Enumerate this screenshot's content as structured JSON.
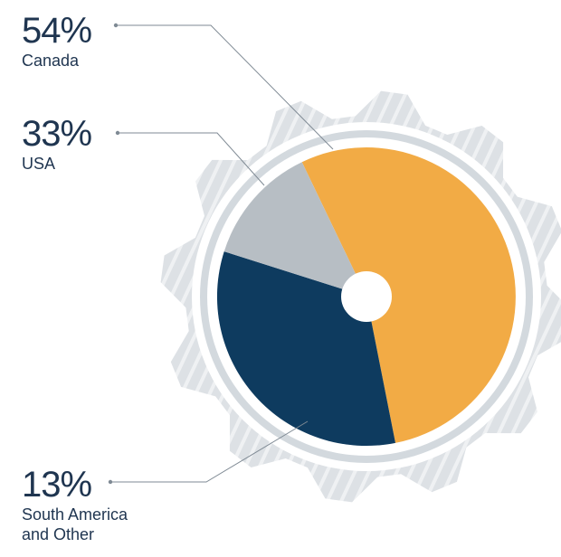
{
  "chart_data": {
    "type": "pie",
    "categories": [
      "Canada",
      "USA",
      "South America and Other"
    ],
    "values": [
      54,
      33,
      13
    ],
    "value_labels": [
      "54%",
      "33%",
      "13%"
    ],
    "colors": [
      "#f2ab45",
      "#0e3b5f",
      "#b7bec4"
    ]
  }
}
